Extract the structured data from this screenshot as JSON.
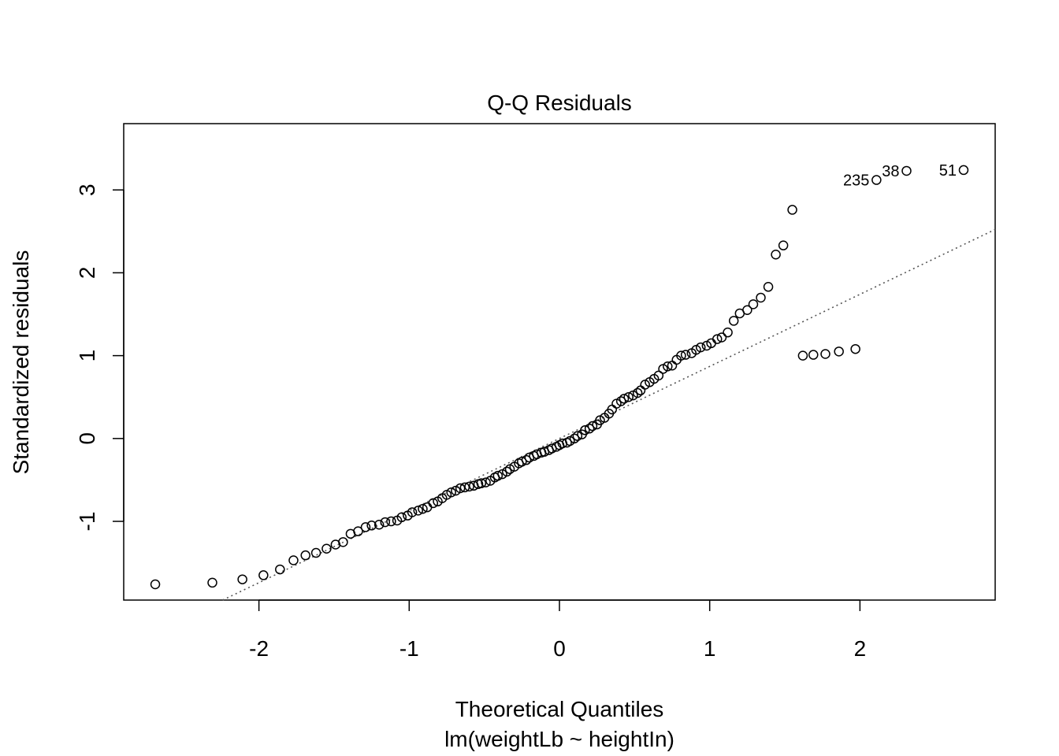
{
  "chart_data": {
    "type": "scatter",
    "title": "Q-Q Residuals",
    "xlabel": "Theoretical Quantiles",
    "ylabel": "Standardized residuals",
    "subtitle": "lm(weightLb ~ heightIn)",
    "xlim": [
      -2.9,
      2.9
    ],
    "ylim": [
      -1.95,
      3.8
    ],
    "x_ticks": [
      -2,
      -1,
      0,
      1,
      2
    ],
    "x_tick_labels": [
      "-2",
      "-1",
      "0",
      "1",
      "2"
    ],
    "y_ticks": [
      -1,
      0,
      1,
      2,
      3
    ],
    "y_tick_labels": [
      "-1",
      "0",
      "1",
      "2",
      "3"
    ],
    "reference_line": {
      "style": "dotted",
      "intercept": 0.0,
      "slope": 0.87
    },
    "labeled_points": [
      {
        "label": "235",
        "x": 2.11,
        "y": 3.12
      },
      {
        "label": "38",
        "x": 2.31,
        "y": 3.23
      },
      {
        "label": "51",
        "x": 2.69,
        "y": 3.24
      }
    ],
    "points": {
      "x": [
        -2.69,
        -2.31,
        -2.11,
        -1.97,
        -1.86,
        -1.77,
        -1.69,
        -1.62,
        -1.55,
        -1.49,
        -1.44,
        -1.39,
        -1.34,
        -1.29,
        -1.25,
        -1.2,
        -1.16,
        -1.12,
        -1.08,
        -1.05,
        -1.01,
        -0.98,
        -0.94,
        -0.91,
        -0.88,
        -0.84,
        -0.81,
        -0.78,
        -0.75,
        -0.72,
        -0.69,
        -0.66,
        -0.63,
        -0.6,
        -0.57,
        -0.54,
        -0.52,
        -0.49,
        -0.46,
        -0.43,
        -0.41,
        -0.38,
        -0.35,
        -0.33,
        -0.3,
        -0.27,
        -0.25,
        -0.22,
        -0.2,
        -0.17,
        -0.15,
        -0.12,
        -0.1,
        -0.07,
        -0.05,
        -0.02,
        0.0,
        0.02,
        0.05,
        0.07,
        0.1,
        0.12,
        0.15,
        0.17,
        0.2,
        0.22,
        0.25,
        0.27,
        0.3,
        0.33,
        0.35,
        0.38,
        0.41,
        0.43,
        0.46,
        0.49,
        0.52,
        0.54,
        0.57,
        0.6,
        0.63,
        0.66,
        0.69,
        0.72,
        0.75,
        0.78,
        0.81,
        0.84,
        0.88,
        0.91,
        0.94,
        0.98,
        1.01,
        1.05,
        1.08,
        1.12,
        1.16,
        1.2,
        1.25,
        1.29,
        1.34,
        1.39,
        1.44,
        1.49,
        1.55,
        1.62,
        1.69,
        1.77,
        1.86,
        1.97
      ],
      "y": [
        -1.76,
        -1.74,
        -1.7,
        -1.65,
        -1.58,
        -1.47,
        -1.41,
        -1.38,
        -1.33,
        -1.28,
        -1.25,
        -1.15,
        -1.12,
        -1.07,
        -1.05,
        -1.04,
        -1.01,
        -1.0,
        -0.99,
        -0.95,
        -0.93,
        -0.89,
        -0.87,
        -0.85,
        -0.83,
        -0.78,
        -0.76,
        -0.72,
        -0.68,
        -0.65,
        -0.63,
        -0.6,
        -0.59,
        -0.58,
        -0.57,
        -0.55,
        -0.54,
        -0.53,
        -0.51,
        -0.47,
        -0.45,
        -0.43,
        -0.4,
        -0.37,
        -0.34,
        -0.3,
        -0.28,
        -0.26,
        -0.23,
        -0.21,
        -0.19,
        -0.17,
        -0.16,
        -0.14,
        -0.12,
        -0.1,
        -0.08,
        -0.06,
        -0.05,
        -0.03,
        0.0,
        0.03,
        0.05,
        0.1,
        0.12,
        0.15,
        0.17,
        0.22,
        0.25,
        0.3,
        0.35,
        0.42,
        0.45,
        0.48,
        0.5,
        0.52,
        0.55,
        0.58,
        0.65,
        0.68,
        0.72,
        0.76,
        0.84,
        0.87,
        0.88,
        0.95,
        1.0,
        1.01,
        1.03,
        1.07,
        1.1,
        1.12,
        1.15,
        1.2,
        1.22,
        1.28,
        1.42,
        1.51,
        1.55,
        1.62,
        1.7,
        1.83,
        2.22,
        2.33,
        2.76,
        1.0,
        1.01,
        1.02,
        1.05,
        1.08
      ],
      "extra_note": ""
    }
  }
}
